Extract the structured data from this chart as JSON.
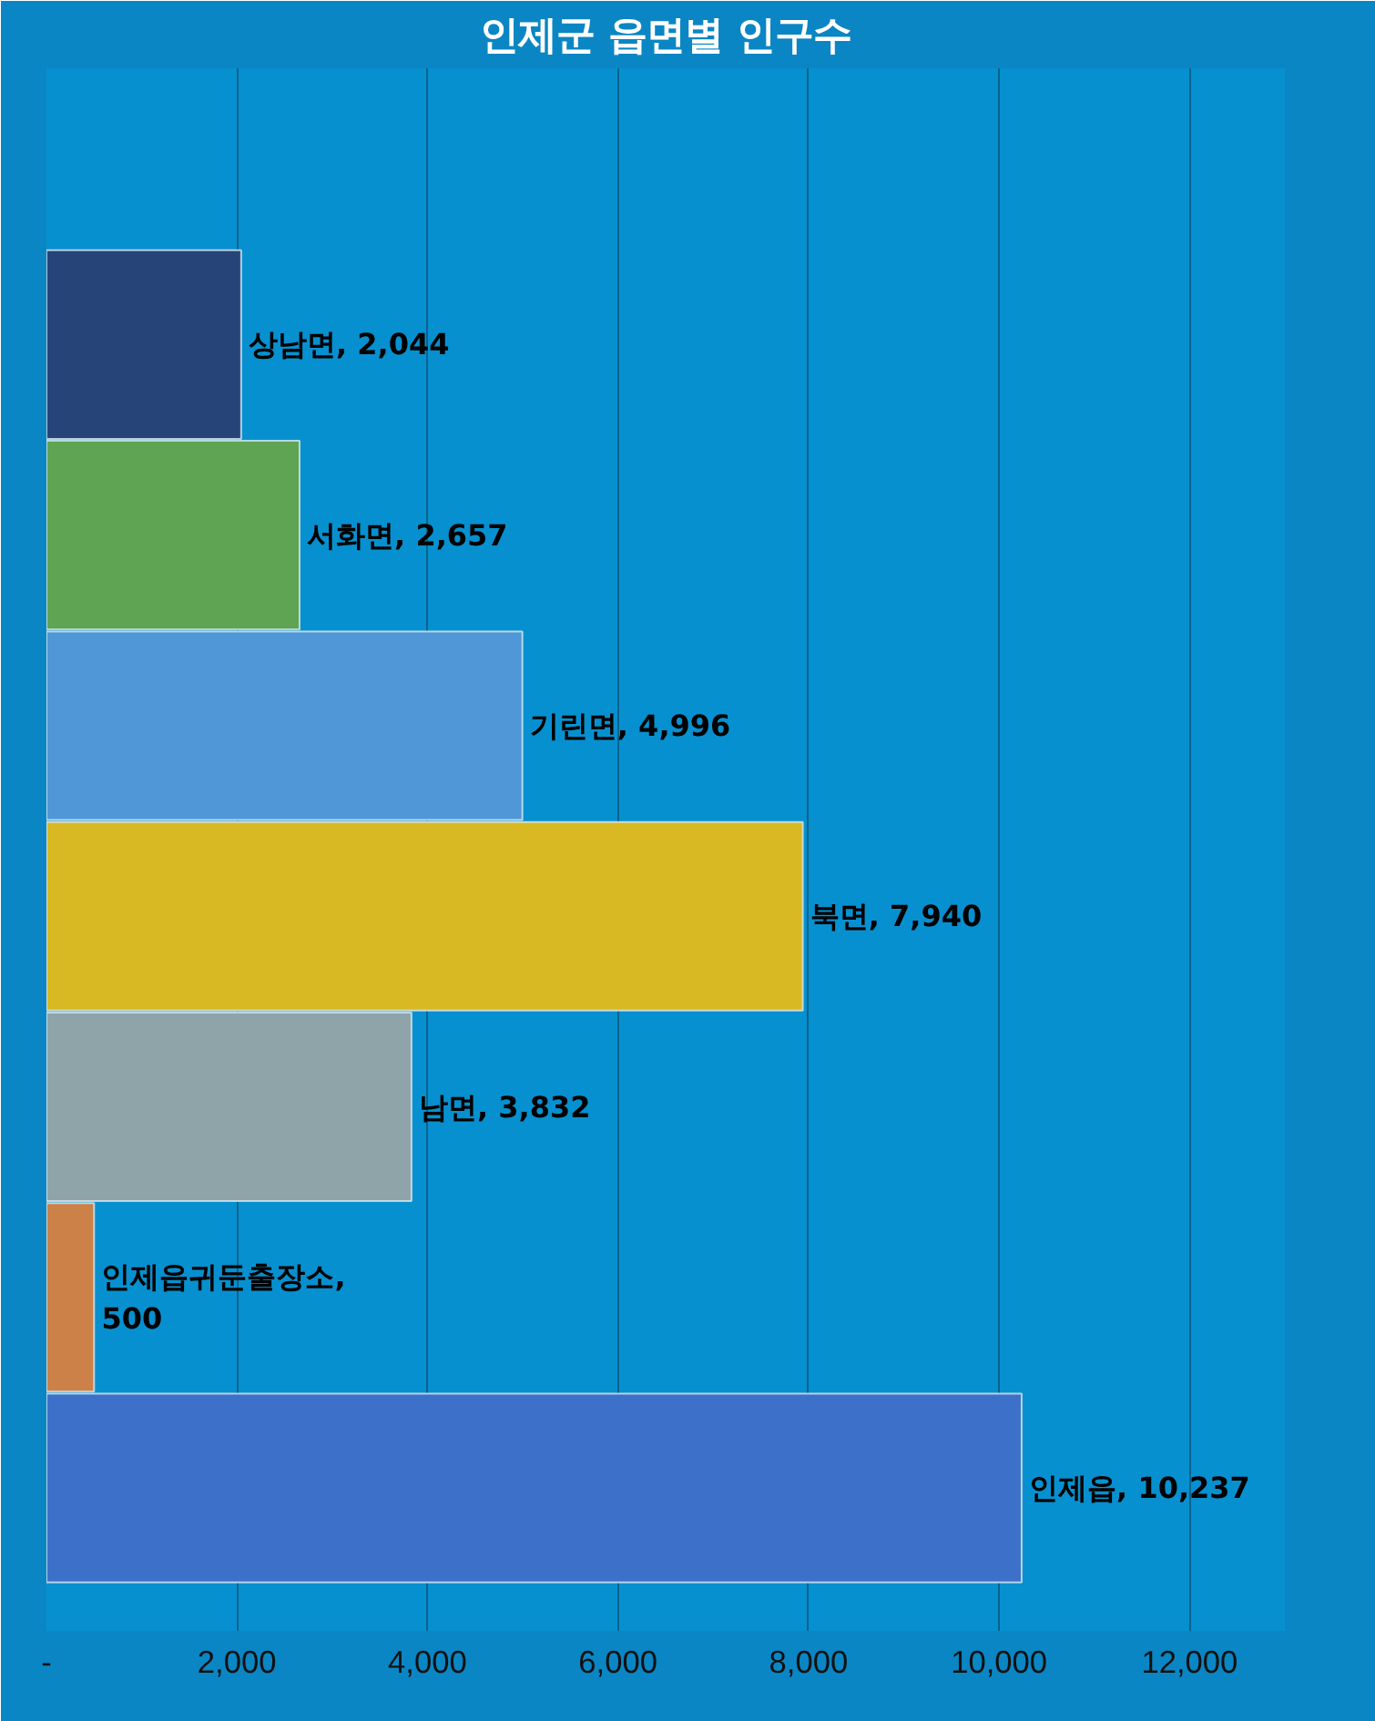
{
  "chart_data": {
    "type": "bar",
    "orientation": "horizontal",
    "title": "인제군 읍면별 인구수",
    "categories": [
      "상남면",
      "서화면",
      "기린면",
      "북면",
      "남면",
      "인제읍귀둔출장소",
      "인제읍"
    ],
    "values": [
      2044,
      2657,
      4996,
      7940,
      3832,
      500,
      10237
    ],
    "colors": [
      "#264478",
      "#5fa453",
      "#4f97d6",
      "#d9b923",
      "#8fa4a8",
      "#cc8148",
      "#3d71c9"
    ],
    "xlim": [
      0,
      13000
    ],
    "xticks": [
      {
        "value": 0,
        "label": "-"
      },
      {
        "value": 2000,
        "label": "2,000"
      },
      {
        "value": 4000,
        "label": "4,000"
      },
      {
        "value": 6000,
        "label": "6,000"
      },
      {
        "value": 8000,
        "label": "8,000"
      },
      {
        "value": 10000,
        "label": "10,000"
      },
      {
        "value": 12000,
        "label": "12,000"
      }
    ],
    "value_labels": [
      ", 2,044",
      ", 2,657",
      ", 4,996",
      ", 7,940",
      ", 3,832",
      ",\n500",
      ", 10,237"
    ],
    "grid": "x",
    "tick_labels": "x"
  }
}
